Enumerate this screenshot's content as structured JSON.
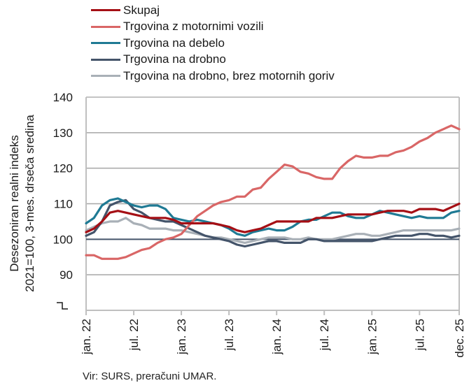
{
  "chart_data": {
    "type": "line",
    "ylabel_line1": "Desezoniran realni indeks",
    "ylabel_line2": "2021=100, 3-mes. drseča sredina",
    "ylim": [
      80,
      140
    ],
    "yticks": [
      90,
      100,
      110,
      120,
      130,
      140
    ],
    "ytick_labels": [
      "90",
      "100",
      "110",
      "120",
      "130",
      "140"
    ],
    "reference_line": 100,
    "axis_break": true,
    "xtick_labels": [
      "jan. 22",
      "jul. 22",
      "jan. 23",
      "jul. 23",
      "jan. 24",
      "jul. 24",
      "jan. 25",
      "jul. 25",
      "dec. 25"
    ],
    "xtick_month_index": [
      0,
      6,
      12,
      18,
      24,
      30,
      36,
      42,
      47
    ],
    "grid": "horizontal",
    "legend_position": "top",
    "series": [
      {
        "name": "Skupaj",
        "color": "#a50f15",
        "values": [
          102,
          103,
          105,
          107.5,
          108,
          107.5,
          107,
          106.5,
          106,
          106,
          106,
          105.5,
          104.5,
          104.5,
          104.5,
          104.5,
          104.5,
          104,
          103.5,
          102.5,
          102,
          102.5,
          103,
          104,
          105,
          105,
          105,
          105,
          105,
          106,
          106,
          106,
          106.5,
          107,
          107,
          107,
          107,
          107.5,
          108,
          108,
          108,
          107.5,
          108.5,
          108.5,
          108.5,
          108,
          109,
          110
        ]
      },
      {
        "name": "Trgovina z motornimi vozili",
        "color": "#d96666",
        "values": [
          95.5,
          95.5,
          94.5,
          94.5,
          94.5,
          95,
          96,
          97,
          97.5,
          99,
          100,
          100.5,
          101.5,
          104,
          106.5,
          108,
          109.5,
          110.5,
          111,
          112,
          112,
          114,
          114.5,
          117,
          119,
          121,
          120.5,
          119,
          118.5,
          117.5,
          117,
          117,
          120,
          122,
          123.5,
          123,
          123,
          123.5,
          123.5,
          124.5,
          125,
          126,
          127.5,
          128.5,
          130,
          131,
          132,
          131
        ]
      },
      {
        "name": "Trgovina na debelo",
        "color": "#1f7a94",
        "values": [
          104.5,
          106,
          109.5,
          111,
          111.5,
          110.5,
          109.5,
          109,
          109.5,
          109.5,
          108.5,
          106,
          105.5,
          105,
          105.5,
          105,
          104.5,
          104,
          103,
          101.5,
          101,
          102,
          102.5,
          103,
          102.5,
          102.5,
          103.5,
          105,
          105.5,
          105.5,
          106.5,
          107.5,
          107.5,
          106.5,
          106,
          106,
          107,
          108,
          107.5,
          107,
          106.5,
          106,
          106.5,
          106,
          106,
          106,
          107.5,
          108
        ]
      },
      {
        "name": "Trgovina na drobno",
        "color": "#44546a",
        "values": [
          101,
          102,
          105,
          109.5,
          110.5,
          111,
          108.5,
          107.5,
          106,
          105.5,
          105,
          105,
          104,
          103,
          102,
          101,
          100.5,
          100,
          99.5,
          98.5,
          98,
          98.5,
          99,
          99.5,
          99.5,
          99,
          99,
          99,
          100,
          100,
          99.5,
          99.5,
          99.5,
          99.5,
          99.5,
          99.5,
          99.5,
          100,
          100.5,
          101,
          101,
          101,
          101.5,
          101.5,
          101,
          101,
          100.5,
          101
        ]
      },
      {
        "name": "Trgovina na drobno, brez motornih goriv",
        "color": "#a9b0b7",
        "values": [
          102.5,
          103.5,
          104.5,
          105,
          105,
          106,
          104.5,
          104,
          103,
          103,
          103,
          102.5,
          102.5,
          102,
          101.5,
          101,
          100.5,
          100.5,
          100,
          99.5,
          99,
          99.5,
          100,
          100.5,
          100.5,
          100.5,
          100,
          100,
          100.5,
          100,
          100,
          100,
          100.5,
          101,
          101.5,
          101.5,
          101,
          101,
          101.5,
          102,
          102.5,
          102.5,
          102.5,
          102.5,
          102.5,
          102.5,
          102.5,
          103
        ]
      }
    ],
    "source": "Vir: SURS, preračuni UMAR."
  }
}
